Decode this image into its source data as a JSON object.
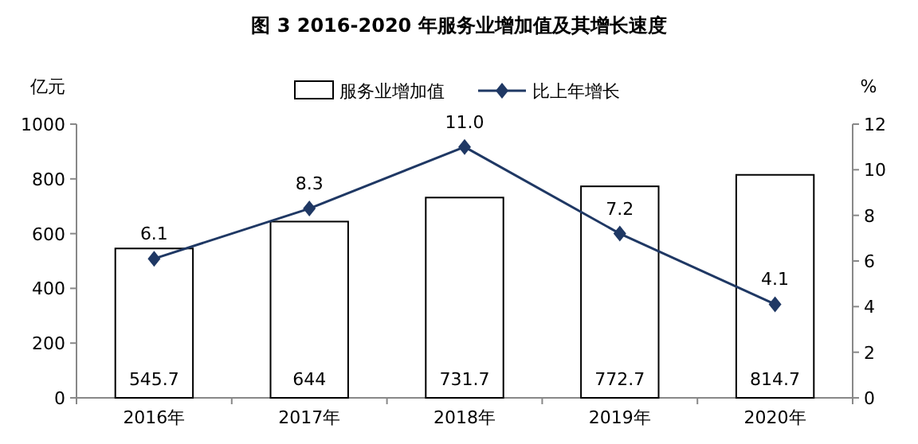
{
  "chart_data": {
    "type": "bar",
    "title": "图 3 2016-2020 年服务业增加值及其增长速度",
    "ylabel": "亿元",
    "y2label": "%",
    "categories": [
      "2016年",
      "2017年",
      "2018年",
      "2019年",
      "2020年"
    ],
    "series": [
      {
        "name": "服务业增加值",
        "color": "#ffffff",
        "values": [
          545.7,
          644,
          731.7,
          772.7,
          814.7
        ],
        "value_labels": [
          "545.7",
          "644",
          "731.7",
          "772.7",
          "814.7"
        ]
      },
      {
        "name": "比上年增长",
        "type": "line",
        "axis": "y2",
        "color": "#1f3864",
        "marker": "diamond",
        "values": [
          6.1,
          8.3,
          11.0,
          7.2,
          4.1
        ],
        "value_labels": [
          "6.1",
          "8.3",
          "11.0",
          "7.2",
          "4.1"
        ]
      }
    ],
    "ylim": [
      0,
      1000
    ],
    "yticks": [
      0,
      200,
      400,
      600,
      800,
      1000
    ],
    "y2lim": [
      0,
      12
    ],
    "y2ticks": [
      0,
      2,
      4,
      6,
      8,
      10,
      12
    ],
    "legend": "top",
    "grid": false
  }
}
